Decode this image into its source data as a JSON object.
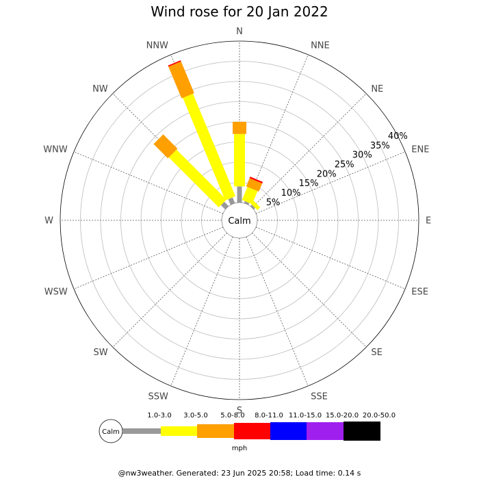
{
  "title": "Wind rose for 20 Jan 2022",
  "footer": "@nw3weather. Generated: 23 Jun 2025 20:58; Load time: 0.14 s",
  "center_label": "Calm",
  "unit_label": "mph",
  "chart_data": {
    "type": "wind-rose",
    "title": "Wind rose for 20 Jan 2022",
    "directions": [
      "N",
      "NNE",
      "NE",
      "ENE",
      "E",
      "ESE",
      "SE",
      "SSE",
      "S",
      "SSW",
      "SW",
      "WSW",
      "W",
      "WNW",
      "NW",
      "NNW"
    ],
    "ring_labels": [
      "5%",
      "10%",
      "15%",
      "20%",
      "25%",
      "30%",
      "35%",
      "40%"
    ],
    "rlim": [
      0,
      40
    ],
    "calm_percent": 4,
    "speed_bins": [
      {
        "label": "1.0-3.0",
        "color": "#999999"
      },
      {
        "label": "3.0-5.0",
        "color": "#ffff00"
      },
      {
        "label": "5.0-8.0",
        "color": "#ff9f00"
      },
      {
        "label": "8.0-11.0",
        "color": "#ff0000"
      },
      {
        "label": "11.0-15.0",
        "color": "#0000ff"
      },
      {
        "label": "15.0-20.0",
        "color": "#9f1fef"
      },
      {
        "label": "20.0-50.0",
        "color": "#000000"
      }
    ],
    "series": [
      {
        "direction": "N",
        "values": [
          4.0,
          13.0,
          3.0,
          0,
          0,
          0,
          0
        ]
      },
      {
        "direction": "NNE",
        "values": [
          0.5,
          3.5,
          2.2,
          0.4,
          0,
          0,
          0
        ]
      },
      {
        "direction": "NE",
        "values": [
          0.5,
          1.0,
          0,
          0,
          0,
          0,
          0
        ]
      },
      {
        "direction": "ENE",
        "values": [
          0,
          0,
          0,
          0,
          0,
          0,
          0
        ]
      },
      {
        "direction": "E",
        "values": [
          0,
          0,
          0,
          0,
          0,
          0,
          0
        ]
      },
      {
        "direction": "ESE",
        "values": [
          0,
          0,
          0,
          0,
          0,
          0,
          0
        ]
      },
      {
        "direction": "SE",
        "values": [
          0,
          0,
          0,
          0,
          0,
          0,
          0
        ]
      },
      {
        "direction": "SSE",
        "values": [
          0,
          0,
          0,
          0,
          0,
          0,
          0
        ]
      },
      {
        "direction": "S",
        "values": [
          0,
          0,
          0,
          0,
          0,
          0,
          0
        ]
      },
      {
        "direction": "SSW",
        "values": [
          0,
          0,
          0,
          0,
          0,
          0,
          0
        ]
      },
      {
        "direction": "SW",
        "values": [
          0,
          0,
          0,
          0,
          0,
          0,
          0
        ]
      },
      {
        "direction": "WSW",
        "values": [
          0,
          0,
          0,
          0,
          0,
          0,
          0
        ]
      },
      {
        "direction": "W",
        "values": [
          0,
          0,
          0,
          0,
          0,
          0,
          0
        ]
      },
      {
        "direction": "WNW",
        "values": [
          0,
          0,
          0,
          0,
          0,
          0,
          0
        ]
      },
      {
        "direction": "NW",
        "values": [
          1.5,
          17.5,
          5.0,
          0,
          0,
          0,
          0
        ]
      },
      {
        "direction": "NNW",
        "values": [
          1.5,
          27.5,
          8.5,
          0.3,
          0,
          0,
          0
        ]
      }
    ],
    "grid": true
  }
}
